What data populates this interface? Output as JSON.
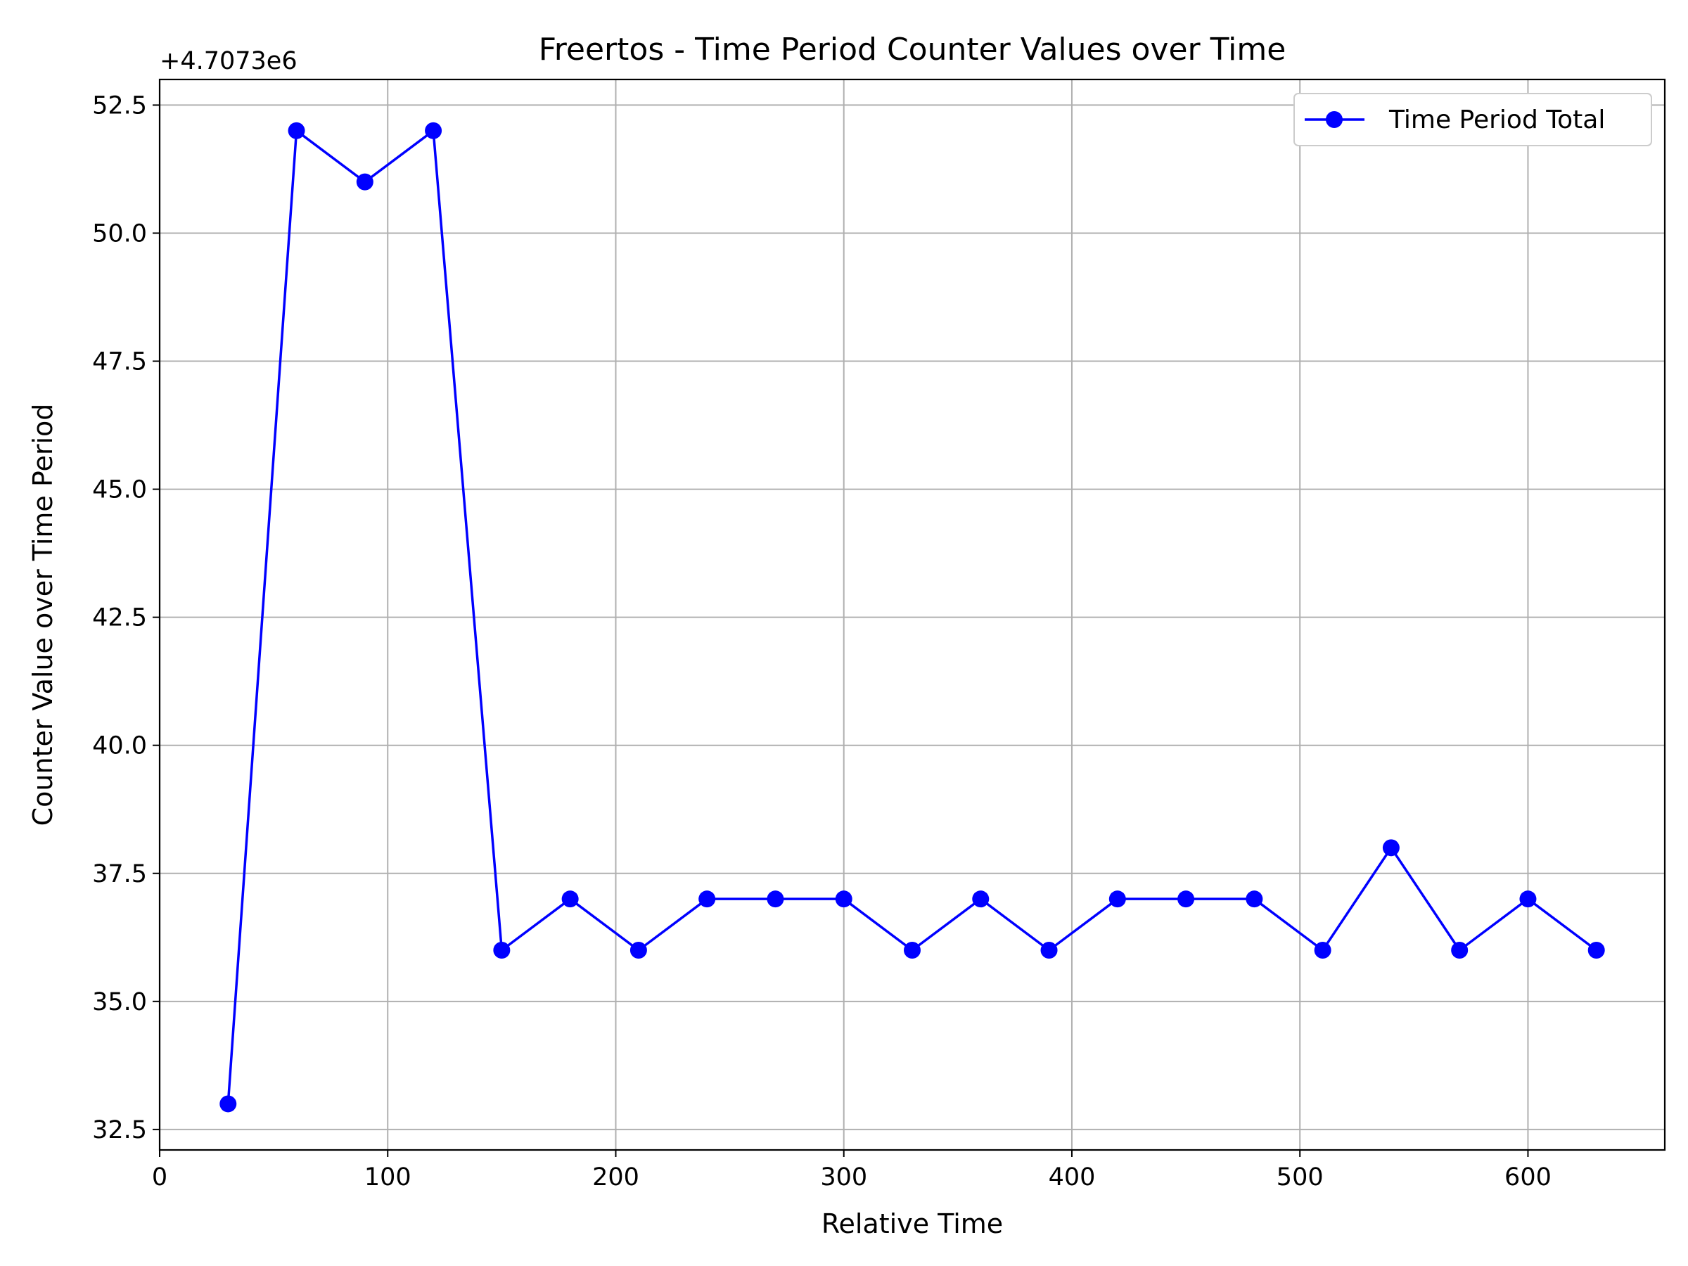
{
  "chart_data": {
    "type": "line",
    "title": "Freertos - Time Period Counter Values over Time",
    "xlabel": "Relative Time",
    "ylabel": "Counter Value over Time Period",
    "y_offset_label": "+4.7073e6",
    "y_offset": 4707300,
    "xlim": [
      0,
      660
    ],
    "ylim": [
      32.1,
      53.0
    ],
    "x_ticks": [
      0,
      100,
      200,
      300,
      400,
      500,
      600
    ],
    "y_ticks": [
      32.5,
      35.0,
      37.5,
      40.0,
      42.5,
      45.0,
      47.5,
      50.0,
      52.5
    ],
    "grid": true,
    "legend_position": "upper right",
    "series": [
      {
        "name": "Time Period Total",
        "color": "#0000ff",
        "marker": "circle",
        "x": [
          30,
          60,
          90,
          120,
          150,
          180,
          210,
          240,
          270,
          300,
          330,
          360,
          390,
          420,
          450,
          480,
          510,
          540,
          570,
          600,
          630
        ],
        "y": [
          33,
          52,
          51,
          52,
          36,
          37,
          36,
          37,
          37,
          37,
          36,
          37,
          36,
          37,
          37,
          37,
          36,
          38,
          36,
          37,
          36
        ]
      }
    ]
  }
}
